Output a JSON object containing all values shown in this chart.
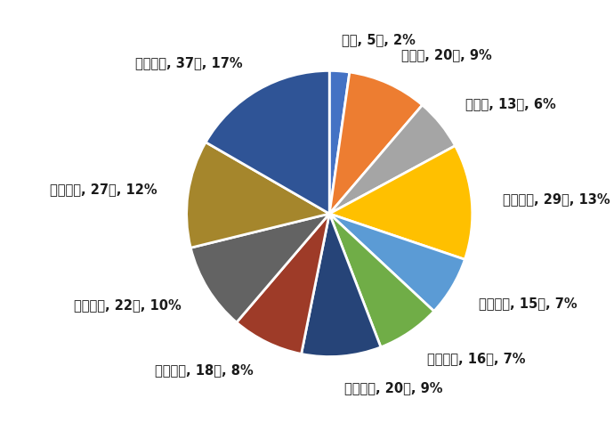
{
  "labels": [
    "０歳, 5人, 2%",
    "１歳～, 20人, 9%",
    "５歳～, 13人, 6%",
    "１０歳～, 29人, 13%",
    "２０歳～, 15人, 7%",
    "３０歳～, 16人, 7%",
    "４０歳～, 20人, 9%",
    "５０歳～, 18人, 8%",
    "６０歳～, 22人, 10%",
    "７０歳～, 27人, 12%",
    "８０歳～, 37人, 17%"
  ],
  "values": [
    5,
    20,
    13,
    29,
    15,
    16,
    20,
    18,
    22,
    27,
    37
  ],
  "colors": [
    "#4472C4",
    "#ED7D31",
    "#A5A5A5",
    "#FFC000",
    "#5B9BD5",
    "#70AD47",
    "#264478",
    "#9E3B28",
    "#636363",
    "#A5862C",
    "#2F5496"
  ],
  "label_fontsize": 10.5,
  "background_color": "#FFFFFF",
  "startangle": 90,
  "labeldistance": 1.22
}
